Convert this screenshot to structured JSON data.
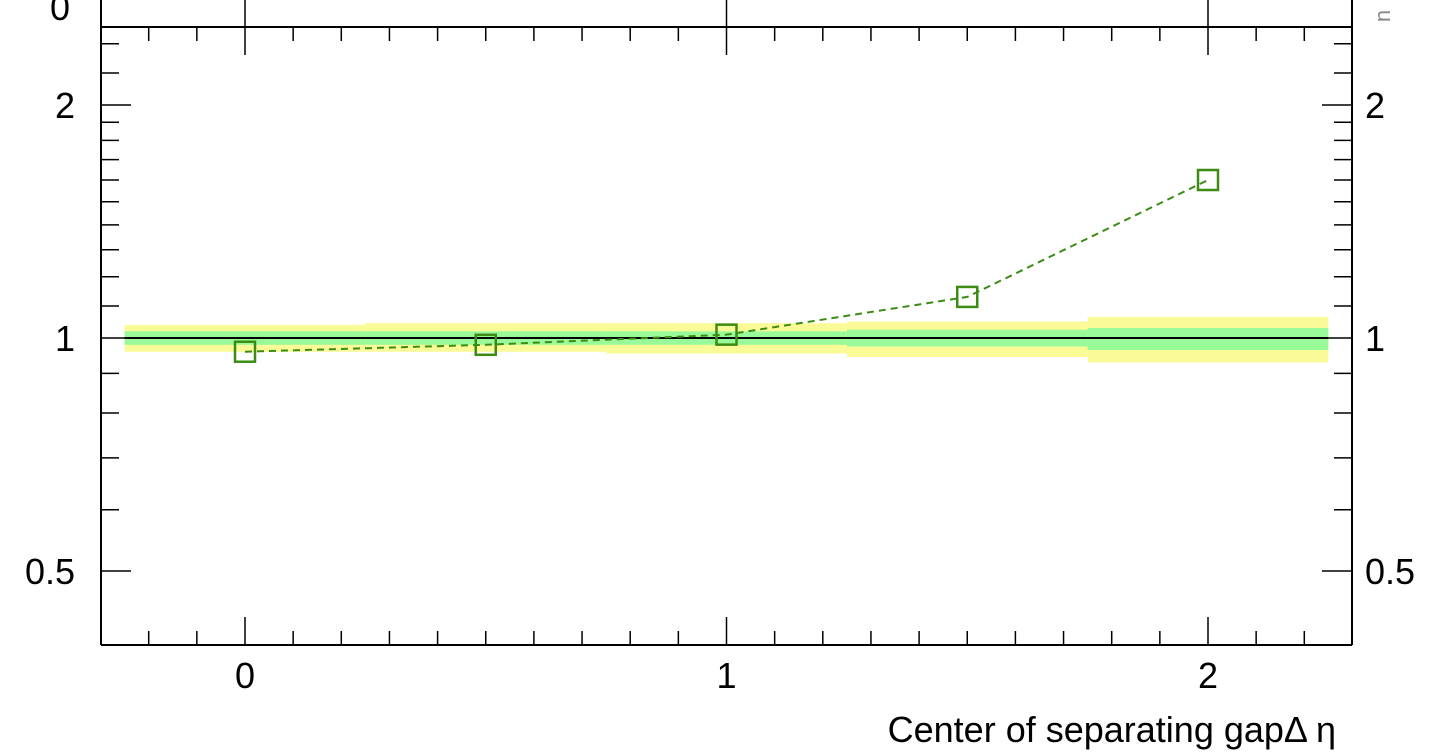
{
  "chart_data": {
    "type": "scatter",
    "title": "",
    "xlabel": "Center of separating gapΔ η",
    "ylabel": "",
    "xlim": [
      -0.3,
      2.3
    ],
    "ylim": [
      0.35,
      2.5
    ],
    "y_scale": "log",
    "x_ticks": [
      0,
      1,
      2
    ],
    "x_tick_labels": [
      "0",
      "1",
      "2"
    ],
    "y_ticks": [
      0.5,
      1,
      2
    ],
    "y_tick_labels": [
      "0.5",
      "1",
      "2"
    ],
    "y_tick_labels_right": [
      "0.5",
      "1",
      "2"
    ],
    "reference_line": 1,
    "series": [
      {
        "marker": "open-square",
        "line_style": "dashed",
        "color": "#3c8c14",
        "x": [
          0,
          0.5,
          1,
          1.5,
          2
        ],
        "y": [
          0.96,
          0.98,
          1.01,
          1.13,
          1.6
        ]
      }
    ],
    "bands": [
      {
        "x0": -0.25,
        "x1": 0.25,
        "green": [
          0.98,
          1.02
        ],
        "yellow": [
          0.96,
          1.04
        ]
      },
      {
        "x0": 0.25,
        "x1": 0.75,
        "green": [
          0.98,
          1.02
        ],
        "yellow": [
          0.96,
          1.045
        ]
      },
      {
        "x0": 0.75,
        "x1": 1.25,
        "green": [
          0.98,
          1.02
        ],
        "yellow": [
          0.955,
          1.045
        ]
      },
      {
        "x0": 1.25,
        "x1": 1.75,
        "green": [
          0.975,
          1.025
        ],
        "yellow": [
          0.945,
          1.05
        ]
      },
      {
        "x0": 1.75,
        "x1": 2.25,
        "green": [
          0.965,
          1.03
        ],
        "yellow": [
          0.93,
          1.065
        ]
      }
    ],
    "band_colors": {
      "inner": "#98fa98",
      "outer": "#fafa96"
    },
    "grid": false,
    "legend": "none"
  },
  "clipped": {
    "top_left_fragment": "0",
    "top_right_fragment": "n"
  }
}
